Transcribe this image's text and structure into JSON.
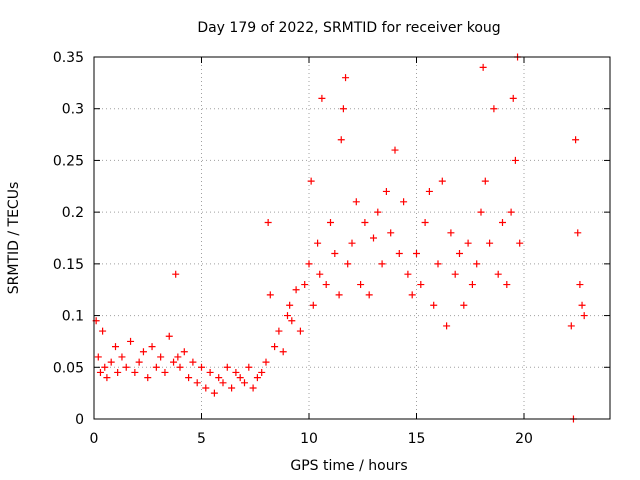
{
  "chart_data": {
    "type": "scatter",
    "title": "Day 179 of 2022, SRMTID for receiver koug",
    "xlabel": "GPS time / hours",
    "ylabel": "SRMTID / TECUs",
    "xlim": [
      0,
      24
    ],
    "ylim": [
      0,
      0.35
    ],
    "xticks": [
      0,
      5,
      10,
      15,
      20
    ],
    "xtick_labels": [
      "0",
      "5",
      "10",
      "15",
      "20"
    ],
    "yticks": [
      0,
      0.05,
      0.1,
      0.15,
      0.2,
      0.25,
      0.3,
      0.35
    ],
    "ytick_labels": [
      "0",
      "0.05",
      "0.1",
      "0.15",
      "0.2",
      "0.25",
      "0.3",
      "0.35"
    ],
    "grid": true,
    "marker": "+",
    "series": [
      {
        "name": "SRMTID",
        "color": "#ff0000",
        "x": [
          0.1,
          0.2,
          0.3,
          0.4,
          0.5,
          0.6,
          0.8,
          1.0,
          1.1,
          1.3,
          1.5,
          1.7,
          1.9,
          2.1,
          2.3,
          2.5,
          2.7,
          2.9,
          3.1,
          3.3,
          3.5,
          3.7,
          3.8,
          3.9,
          4.0,
          4.2,
          4.4,
          4.6,
          4.8,
          5.0,
          5.2,
          5.4,
          5.6,
          5.8,
          6.0,
          6.2,
          6.4,
          6.6,
          6.8,
          7.0,
          7.2,
          7.4,
          7.6,
          7.8,
          8.0,
          8.1,
          8.2,
          8.4,
          8.6,
          8.8,
          9.0,
          9.1,
          9.2,
          9.4,
          9.6,
          9.8,
          10.0,
          10.1,
          10.2,
          10.4,
          10.5,
          10.6,
          10.8,
          11.0,
          11.2,
          11.4,
          11.5,
          11.6,
          11.7,
          11.8,
          12.0,
          12.2,
          12.4,
          12.6,
          12.8,
          13.0,
          13.2,
          13.4,
          13.6,
          13.8,
          14.0,
          14.2,
          14.4,
          14.6,
          14.8,
          15.0,
          15.2,
          15.4,
          15.6,
          15.8,
          16.0,
          16.2,
          16.4,
          16.6,
          16.8,
          17.0,
          17.2,
          17.4,
          17.6,
          17.8,
          18.0,
          18.1,
          18.2,
          18.4,
          18.6,
          18.8,
          19.0,
          19.2,
          19.4,
          19.5,
          19.6,
          19.7,
          19.8,
          22.2,
          22.3,
          22.4,
          22.5,
          22.6,
          22.7,
          22.8
        ],
        "y": [
          0.095,
          0.06,
          0.045,
          0.085,
          0.05,
          0.04,
          0.055,
          0.07,
          0.045,
          0.06,
          0.05,
          0.075,
          0.045,
          0.055,
          0.065,
          0.04,
          0.07,
          0.05,
          0.06,
          0.045,
          0.08,
          0.055,
          0.14,
          0.06,
          0.05,
          0.065,
          0.04,
          0.055,
          0.035,
          0.05,
          0.03,
          0.045,
          0.025,
          0.04,
          0.035,
          0.05,
          0.03,
          0.045,
          0.04,
          0.035,
          0.05,
          0.03,
          0.04,
          0.045,
          0.055,
          0.19,
          0.12,
          0.07,
          0.085,
          0.065,
          0.1,
          0.11,
          0.095,
          0.125,
          0.085,
          0.13,
          0.15,
          0.23,
          0.11,
          0.17,
          0.14,
          0.31,
          0.13,
          0.19,
          0.16,
          0.12,
          0.27,
          0.3,
          0.33,
          0.15,
          0.17,
          0.21,
          0.13,
          0.19,
          0.12,
          0.175,
          0.2,
          0.15,
          0.22,
          0.18,
          0.26,
          0.16,
          0.21,
          0.14,
          0.12,
          0.16,
          0.13,
          0.19,
          0.22,
          0.11,
          0.15,
          0.23,
          0.09,
          0.18,
          0.14,
          0.16,
          0.11,
          0.17,
          0.13,
          0.15,
          0.2,
          0.34,
          0.23,
          0.17,
          0.3,
          0.14,
          0.19,
          0.13,
          0.2,
          0.31,
          0.25,
          0.35,
          0.17,
          0.09,
          0.0,
          0.27,
          0.18,
          0.13,
          0.11,
          0.1
        ]
      }
    ]
  }
}
